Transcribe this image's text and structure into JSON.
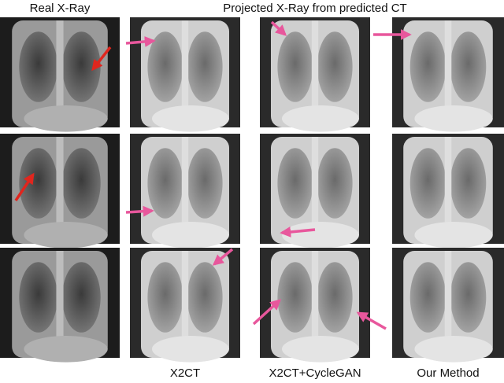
{
  "header": {
    "left": "Real X-Ray",
    "right": "Projected X-Ray from predicted CT"
  },
  "columns": [
    "X2CT",
    "X2CT+CycleGAN",
    "Our Method"
  ]
}
